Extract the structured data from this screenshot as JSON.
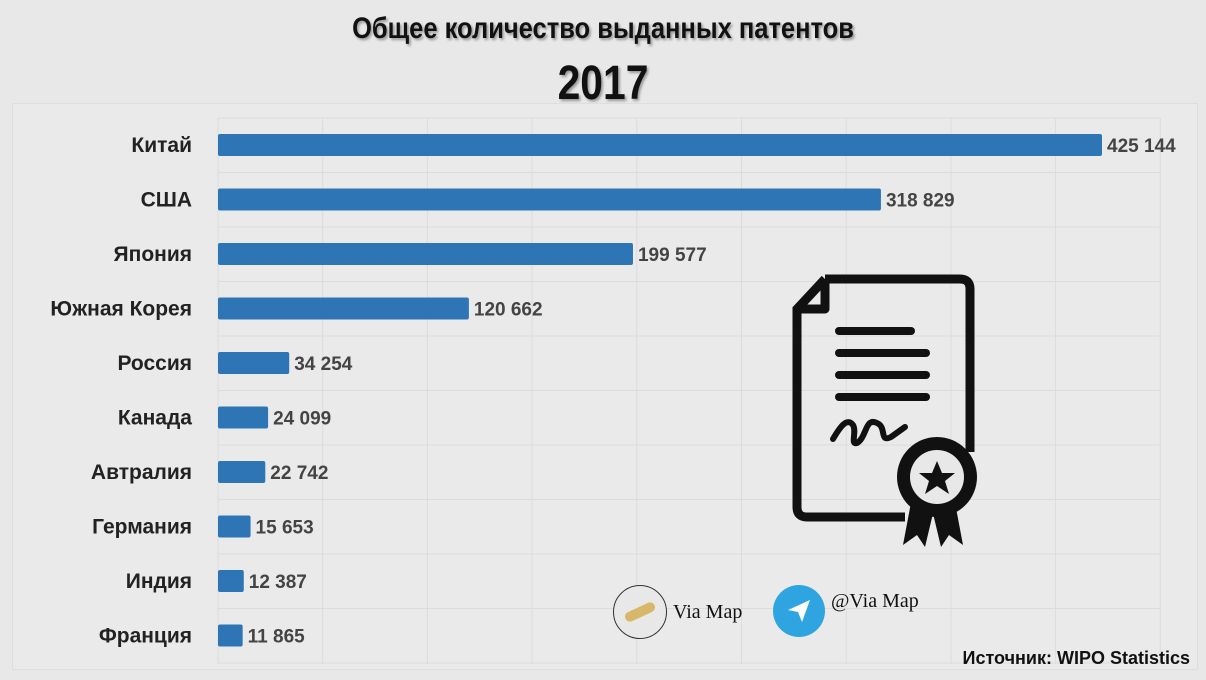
{
  "chart_data": {
    "type": "bar",
    "orientation": "horizontal",
    "title": "Общее количество выданных патентов",
    "subtitle": "2017",
    "categories": [
      "Китай",
      "США",
      "Япония",
      "Южная Корея",
      "Россия",
      "Канада",
      "Автралия",
      "Германия",
      "Индия",
      "Франция"
    ],
    "values": [
      425144,
      318829,
      199577,
      120662,
      34254,
      24099,
      22742,
      15653,
      12387,
      11865
    ],
    "value_labels": [
      "425 144",
      "318 829",
      "199 577",
      "120 662",
      "34 254",
      "24 099",
      "22 742",
      "15 653",
      "12 387",
      "11 865"
    ],
    "xlim": [
      0,
      450000
    ],
    "grid": true,
    "bar_color": "#2e75b6"
  },
  "branding": {
    "site": "Via Map",
    "telegram": "@Via Map",
    "telegram_color": "#2ea5e0"
  },
  "source": "Источник: WIPO Statistics",
  "icons": [
    "patent-certificate-icon",
    "scroll-icon",
    "telegram-icon"
  ]
}
